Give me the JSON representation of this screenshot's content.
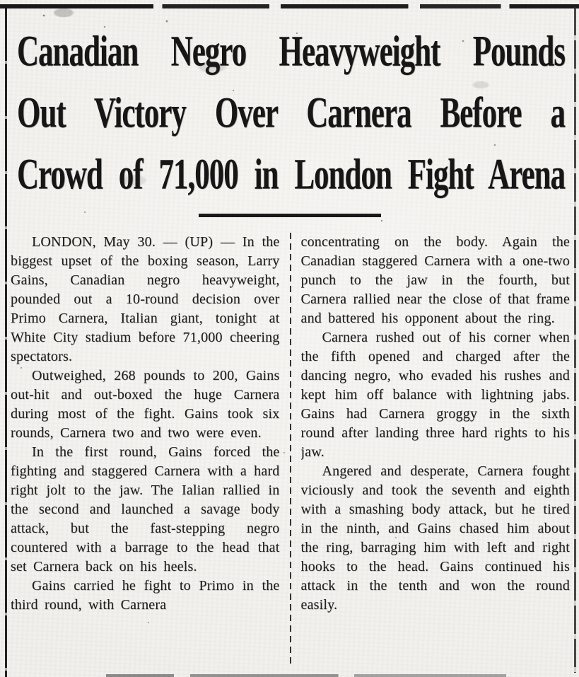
{
  "page": {
    "paper_color": "#f2f0ec",
    "ink_color": "#1c1c1c"
  },
  "headline": {
    "lines": [
      "Canadian Negro Heavyweight Pounds",
      "Out Victory Over Carnera Before a",
      "Crowd of 71,000 in London Fight Arena"
    ]
  },
  "article": {
    "columns": [
      {
        "paragraphs": [
          "LONDON, May 30. — (UP) — In the biggest upset of the boxing season, Larry Gains, Canadian negro heavyweight, pounded out a 10-round decision over Primo Carnera, Italian giant, tonight at White City stadium before 71,000 cheering spectators.",
          "Outweighed, 268 pounds to 200, Gains out-hit and out-boxed the huge Carnera during most of the fight. Gains took six rounds, Carnera two and two were even.",
          "In the first round, Gains forced the fighting and staggered Carnera with a hard right jolt to the jaw. The Ialian rallied in the second and launched a savage body attack, but the fast-stepping negro countered with a barrage to the head that set Carnera back on his heels.",
          "Gains carried he fight to Primo in the third round, with Carnera"
        ]
      },
      {
        "paragraphs": [
          "concentrating on the body. Again the Canadian staggered Carnera with a one-two punch to the jaw in the fourth, but Carnera rallied near the close of that frame and battered his opponent about the ring.",
          "Carnera rushed out of his corner when the fifth opened and charged after the dancing negro, who evaded his rushes and kept him off balance with lightning jabs. Gains had Carnera groggy in the sixth round after landing three hard rights to his jaw.",
          "Angered and desperate, Carnera fought viciously and took the seventh and eighth with a smashing body attack, but he tired in the ninth, and Gains chased him about the ring, barraging him with left and right hooks to the head. Gains continued his attack in the tenth and won the round easily."
        ]
      }
    ]
  }
}
